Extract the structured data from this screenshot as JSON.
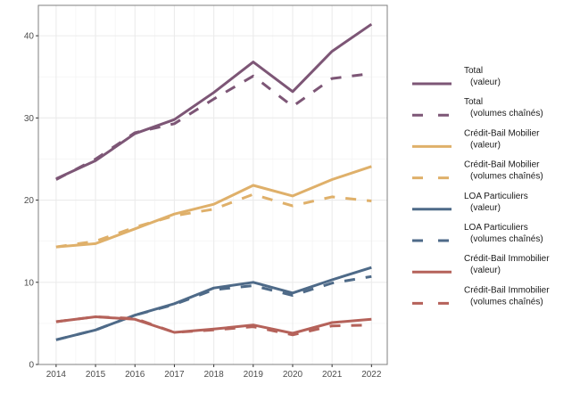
{
  "chart_data": {
    "type": "line",
    "title": "",
    "xlabel": "",
    "ylabel": "",
    "x": [
      2014,
      2015,
      2016,
      2017,
      2018,
      2019,
      2020,
      2021,
      2022
    ],
    "x_tick_labels": [
      "2014",
      "2015",
      "2016",
      "2017",
      "2018",
      "2019",
      "2020",
      "2021",
      "2022"
    ],
    "y_ticks": [
      0,
      10,
      20,
      30,
      40
    ],
    "y_tick_labels": [
      "0",
      "10",
      "20",
      "30",
      "40"
    ],
    "ylim": [
      0,
      43.7
    ],
    "xlim": [
      2013.55,
      2022.4
    ],
    "grid": true,
    "legend_position": "right",
    "series": [
      {
        "name": "Total\n  (valeur)",
        "label_line1": "Total",
        "label_line2": "(valeur)",
        "color": "#7d5676",
        "dash": "solid",
        "values": [
          22.6,
          24.8,
          28.1,
          29.8,
          33.1,
          36.8,
          33.2,
          38.1,
          41.4
        ]
      },
      {
        "name": "Total\n  (volumes chaînés)",
        "label_line1": "Total",
        "label_line2": "(volumes chaînés)",
        "color": "#7d5676",
        "dash": "dashed",
        "values": [
          22.5,
          25.0,
          28.2,
          29.3,
          32.3,
          35.1,
          31.4,
          34.8,
          35.4
        ]
      },
      {
        "name": "Crédit-Bail Mobilier\n  (valeur)",
        "label_line1": "Crédit-Bail Mobilier",
        "label_line2": "(valeur)",
        "color": "#dfb06a",
        "dash": "solid",
        "values": [
          14.3,
          14.7,
          16.5,
          18.3,
          19.5,
          21.8,
          20.5,
          22.5,
          24.1
        ]
      },
      {
        "name": "Crédit-Bail Mobilier\n  (volumes chaînés)",
        "label_line1": "Crédit-Bail Mobilier",
        "label_line2": "(volumes chaînés)",
        "color": "#dfb06a",
        "dash": "dashed",
        "values": [
          14.3,
          15.0,
          16.7,
          18.1,
          18.9,
          20.7,
          19.3,
          20.4,
          19.9
        ]
      },
      {
        "name": "LOA Particuliers\n  (valeur)",
        "label_line1": "LOA Particuliers",
        "label_line2": "(valeur)",
        "color": "#4e6a88",
        "dash": "solid",
        "values": [
          3.0,
          4.2,
          6.0,
          7.4,
          9.3,
          10.0,
          8.7,
          10.3,
          11.8
        ]
      },
      {
        "name": "LOA Particuliers\n  (volumes chaînés)",
        "label_line1": "LOA Particuliers",
        "label_line2": "(volumes chaînés)",
        "color": "#4e6a88",
        "dash": "dashed",
        "values": [
          3.0,
          4.2,
          6.0,
          7.3,
          9.1,
          9.6,
          8.4,
          9.9,
          10.7
        ]
      },
      {
        "name": "Crédit-Bail Immobilier\n  (valeur)",
        "label_line1": "Crédit-Bail Immobilier",
        "label_line2": "(valeur)",
        "color": "#b5625a",
        "dash": "solid",
        "values": [
          5.2,
          5.8,
          5.5,
          3.9,
          4.3,
          4.8,
          3.8,
          5.1,
          5.5
        ]
      },
      {
        "name": "Crédit-Bail Immobilier\n  (volumes chaînés)",
        "label_line1": "Crédit-Bail Immobilier",
        "label_line2": "(volumes chaînés)",
        "color": "#b5625a",
        "dash": "dashed",
        "values": [
          5.2,
          5.8,
          5.6,
          3.9,
          4.2,
          4.6,
          3.6,
          4.7,
          4.8
        ]
      }
    ]
  }
}
